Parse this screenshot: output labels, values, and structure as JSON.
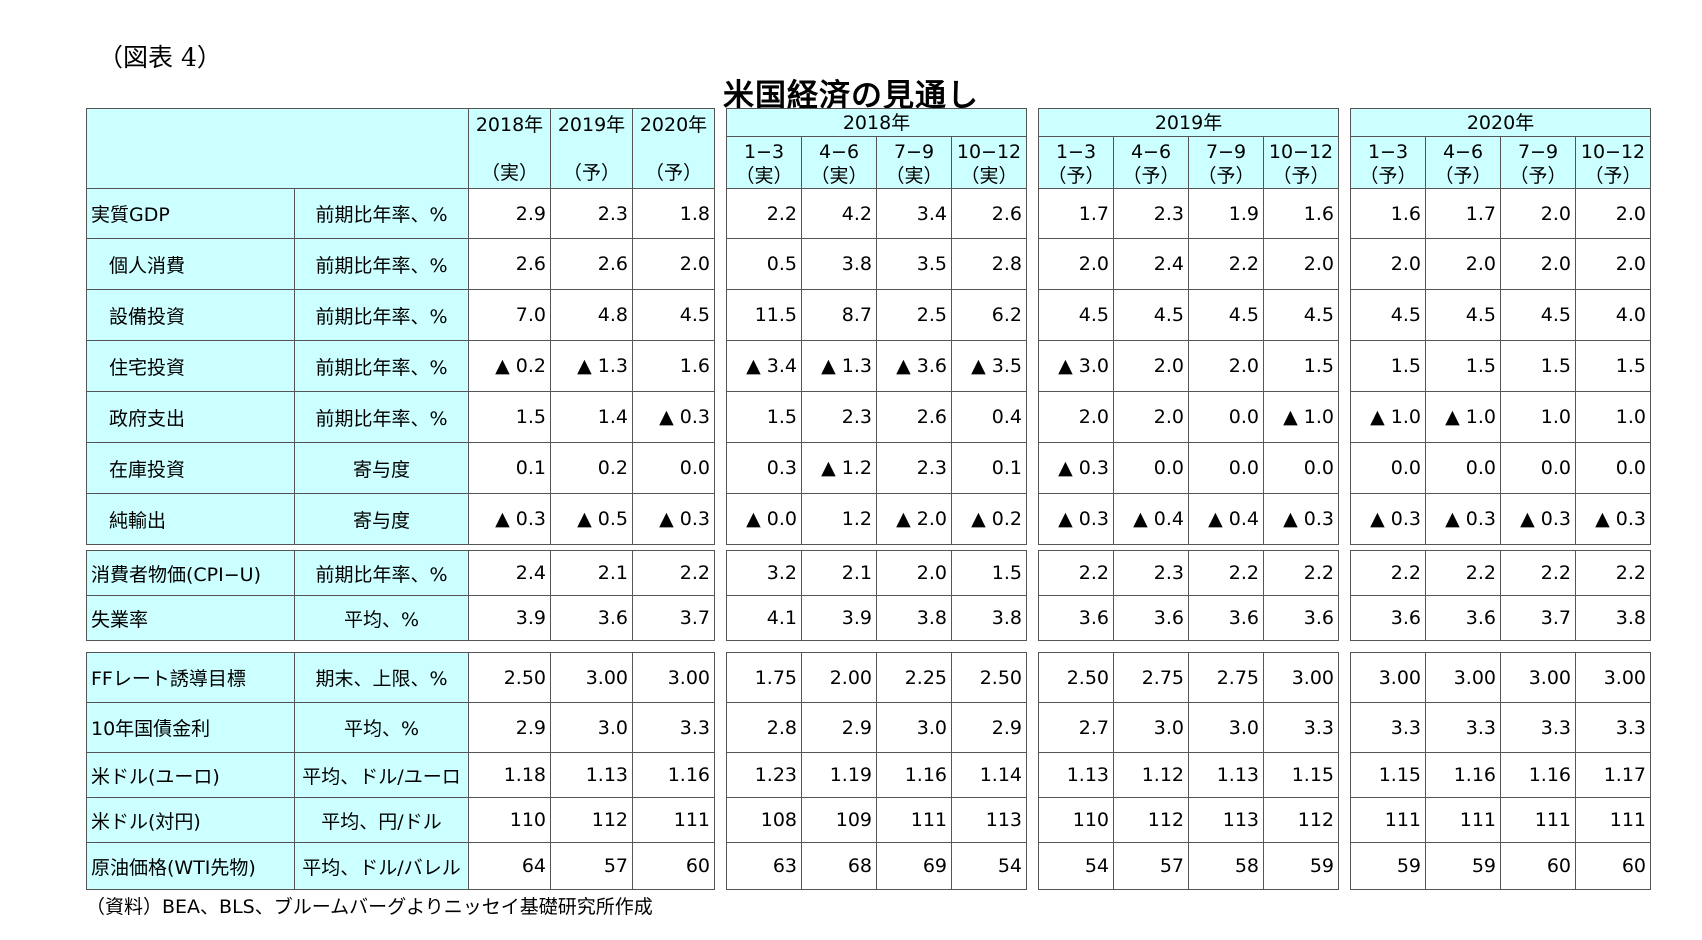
{
  "figure_label": "（図表 4）",
  "title": "米国経済の見通し",
  "source": "（資料）BEA、BLS、ブルームバーグよりニッセイ基礎研究所作成",
  "years_header": [
    "2018年",
    "2019年",
    "2020年"
  ],
  "years_sub": [
    "（実）",
    "（予）",
    "（予）"
  ],
  "quarter_groups": [
    {
      "year": "2018年",
      "quarters": [
        "1−3",
        "4−6",
        "7−9",
        "10−12"
      ],
      "types": [
        "（実）",
        "（実）",
        "（実）",
        "（実）"
      ]
    },
    {
      "year": "2019年",
      "quarters": [
        "1−3",
        "4−6",
        "7−9",
        "10−12"
      ],
      "types": [
        "（予）",
        "（予）",
        "（予）",
        "（予）"
      ]
    },
    {
      "year": "2020年",
      "quarters": [
        "1−3",
        "4−6",
        "7−9",
        "10−12"
      ],
      "types": [
        "（予）",
        "（予）",
        "（予）",
        "（予）"
      ]
    }
  ],
  "sections": [
    {
      "rows": [
        {
          "label": "実質GDP",
          "unit": "前期比年率、%",
          "indent": false,
          "annual": [
            "2.9",
            "2.3",
            "1.8"
          ],
          "q": [
            [
              "2.2",
              "4.2",
              "3.4",
              "2.6"
            ],
            [
              "1.7",
              "2.3",
              "1.9",
              "1.6"
            ],
            [
              "1.6",
              "1.7",
              "2.0",
              "2.0"
            ]
          ]
        },
        {
          "label": "個人消費",
          "unit": "前期比年率、%",
          "indent": true,
          "annual": [
            "2.6",
            "2.6",
            "2.0"
          ],
          "q": [
            [
              "0.5",
              "3.8",
              "3.5",
              "2.8"
            ],
            [
              "2.0",
              "2.4",
              "2.2",
              "2.0"
            ],
            [
              "2.0",
              "2.0",
              "2.0",
              "2.0"
            ]
          ]
        },
        {
          "label": "設備投資",
          "unit": "前期比年率、%",
          "indent": true,
          "annual": [
            "7.0",
            "4.8",
            "4.5"
          ],
          "q": [
            [
              "11.5",
              "8.7",
              "2.5",
              "6.2"
            ],
            [
              "4.5",
              "4.5",
              "4.5",
              "4.5"
            ],
            [
              "4.5",
              "4.5",
              "4.5",
              "4.0"
            ]
          ]
        },
        {
          "label": "住宅投資",
          "unit": "前期比年率、%",
          "indent": true,
          "annual": [
            "▲ 0.2",
            "▲ 1.3",
            "1.6"
          ],
          "q": [
            [
              "▲ 3.4",
              "▲ 1.3",
              "▲ 3.6",
              "▲ 3.5"
            ],
            [
              "▲ 3.0",
              "2.0",
              "2.0",
              "1.5"
            ],
            [
              "1.5",
              "1.5",
              "1.5",
              "1.5"
            ]
          ]
        },
        {
          "label": "政府支出",
          "unit": "前期比年率、%",
          "indent": true,
          "annual": [
            "1.5",
            "1.4",
            "▲ 0.3"
          ],
          "q": [
            [
              "1.5",
              "2.3",
              "2.6",
              "0.4"
            ],
            [
              "2.0",
              "2.0",
              "0.0",
              "▲ 1.0"
            ],
            [
              "▲ 1.0",
              "▲ 1.0",
              "1.0",
              "1.0"
            ]
          ]
        },
        {
          "label": "在庫投資",
          "unit": "寄与度",
          "indent": true,
          "annual": [
            "0.1",
            "0.2",
            "0.0"
          ],
          "q": [
            [
              "0.3",
              "▲ 1.2",
              "2.3",
              "0.1"
            ],
            [
              "▲ 0.3",
              "0.0",
              "0.0",
              "0.0"
            ],
            [
              "0.0",
              "0.0",
              "0.0",
              "0.0"
            ]
          ]
        },
        {
          "label": "純輸出",
          "unit": "寄与度",
          "indent": true,
          "annual": [
            "▲ 0.3",
            "▲ 0.5",
            "▲ 0.3"
          ],
          "q": [
            [
              "▲ 0.0",
              "1.2",
              "▲ 2.0",
              "▲ 0.2"
            ],
            [
              "▲ 0.3",
              "▲ 0.4",
              "▲ 0.4",
              "▲ 0.3"
            ],
            [
              "▲ 0.3",
              "▲ 0.3",
              "▲ 0.3",
              "▲ 0.3"
            ]
          ]
        }
      ]
    },
    {
      "rows": [
        {
          "label": "消費者物価(CPI−U)",
          "unit": "前期比年率、%",
          "indent": false,
          "annual": [
            "2.4",
            "2.1",
            "2.2"
          ],
          "q": [
            [
              "3.2",
              "2.1",
              "2.0",
              "1.5"
            ],
            [
              "2.2",
              "2.3",
              "2.2",
              "2.2"
            ],
            [
              "2.2",
              "2.2",
              "2.2",
              "2.2"
            ]
          ]
        },
        {
          "label": "失業率",
          "unit": "平均、%",
          "indent": false,
          "annual": [
            "3.9",
            "3.6",
            "3.7"
          ],
          "q": [
            [
              "4.1",
              "3.9",
              "3.8",
              "3.8"
            ],
            [
              "3.6",
              "3.6",
              "3.6",
              "3.6"
            ],
            [
              "3.6",
              "3.6",
              "3.7",
              "3.8"
            ]
          ]
        }
      ]
    },
    {
      "rows": [
        {
          "label": "FFレート誘導目標",
          "unit": "期末、上限、%",
          "indent": false,
          "annual": [
            "2.50",
            "3.00",
            "3.00"
          ],
          "q": [
            [
              "1.75",
              "2.00",
              "2.25",
              "2.50"
            ],
            [
              "2.50",
              "2.75",
              "2.75",
              "3.00"
            ],
            [
              "3.00",
              "3.00",
              "3.00",
              "3.00"
            ]
          ]
        },
        {
          "label": "10年国債金利",
          "unit": "平均、%",
          "indent": false,
          "annual": [
            "2.9",
            "3.0",
            "3.3"
          ],
          "q": [
            [
              "2.8",
              "2.9",
              "3.0",
              "2.9"
            ],
            [
              "2.7",
              "3.0",
              "3.0",
              "3.3"
            ],
            [
              "3.3",
              "3.3",
              "3.3",
              "3.3"
            ]
          ]
        },
        {
          "label": "米ドル(ユーロ)",
          "unit": "平均、ドル/ユーロ",
          "indent": false,
          "annual": [
            "1.18",
            "1.13",
            "1.16"
          ],
          "q": [
            [
              "1.23",
              "1.19",
              "1.16",
              "1.14"
            ],
            [
              "1.13",
              "1.12",
              "1.13",
              "1.15"
            ],
            [
              "1.15",
              "1.16",
              "1.16",
              "1.17"
            ]
          ]
        },
        {
          "label": "米ドル(対円)",
          "unit": "平均、円/ドル",
          "indent": false,
          "annual": [
            "110",
            "112",
            "111"
          ],
          "q": [
            [
              "108",
              "109",
              "111",
              "113"
            ],
            [
              "110",
              "112",
              "113",
              "112"
            ],
            [
              "111",
              "111",
              "111",
              "111"
            ]
          ]
        },
        {
          "label": "原油価格(WTI先物)",
          "unit": "平均、ドル/バレル",
          "indent": false,
          "annual": [
            "64",
            "57",
            "60"
          ],
          "q": [
            [
              "63",
              "68",
              "69",
              "54"
            ],
            [
              "54",
              "57",
              "58",
              "59"
            ],
            [
              "59",
              "59",
              "60",
              "60"
            ]
          ]
        }
      ]
    }
  ]
}
